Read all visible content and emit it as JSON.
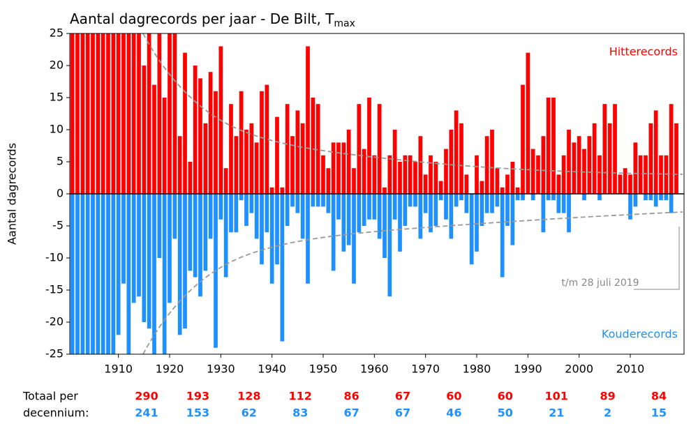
{
  "chart_data": {
    "type": "bar",
    "title": "Aantal dagrecords per jaar - De Bilt, T",
    "title_subscript": "max",
    "ylabel": "Aantal dagrecords",
    "annotation": "t/m 28 juli 2019",
    "x": [
      1901,
      1902,
      1903,
      1904,
      1905,
      1906,
      1907,
      1908,
      1909,
      1910,
      1911,
      1912,
      1913,
      1914,
      1915,
      1916,
      1917,
      1918,
      1919,
      1920,
      1921,
      1922,
      1923,
      1924,
      1925,
      1926,
      1927,
      1928,
      1929,
      1930,
      1931,
      1932,
      1933,
      1934,
      1935,
      1936,
      1937,
      1938,
      1939,
      1940,
      1941,
      1942,
      1943,
      1944,
      1945,
      1946,
      1947,
      1948,
      1949,
      1950,
      1951,
      1952,
      1953,
      1954,
      1955,
      1956,
      1957,
      1958,
      1959,
      1960,
      1961,
      1962,
      1963,
      1964,
      1965,
      1966,
      1967,
      1968,
      1969,
      1970,
      1971,
      1972,
      1973,
      1974,
      1975,
      1976,
      1977,
      1978,
      1979,
      1980,
      1981,
      1982,
      1983,
      1984,
      1985,
      1986,
      1987,
      1988,
      1989,
      1990,
      1991,
      1992,
      1993,
      1994,
      1995,
      1996,
      1997,
      1998,
      1999,
      2000,
      2001,
      2002,
      2003,
      2004,
      2005,
      2006,
      2007,
      2008,
      2009,
      2010,
      2011,
      2012,
      2013,
      2014,
      2015,
      2016,
      2017,
      2018,
      2019
    ],
    "series": [
      {
        "name": "Hitterecords",
        "color": "#ff0000",
        "values": [
          25,
          25,
          25,
          25,
          25,
          25,
          25,
          25,
          25,
          25,
          25,
          25,
          25,
          25,
          20,
          25,
          17,
          25,
          15,
          25,
          25,
          9,
          22,
          5,
          20,
          18,
          11,
          19,
          16,
          23,
          4,
          14,
          9,
          16,
          10,
          11,
          8,
          16,
          17,
          1,
          12,
          1,
          14,
          9,
          13,
          11,
          23,
          15,
          14,
          6,
          4,
          8,
          8,
          8,
          10,
          4,
          14,
          7,
          15,
          6,
          14,
          1,
          6,
          10,
          5,
          6,
          6,
          5,
          9,
          3,
          6,
          5,
          2,
          7,
          10,
          13,
          11,
          3,
          0,
          6,
          2,
          9,
          10,
          4,
          1,
          3,
          5,
          1,
          17,
          22,
          7,
          6,
          9,
          15,
          15,
          3,
          6,
          10,
          8,
          9,
          7,
          9,
          11,
          6,
          14,
          11,
          14,
          3,
          4,
          3,
          8,
          6,
          6,
          11,
          13,
          6,
          6,
          14,
          11
        ]
      },
      {
        "name": "Kouderecords",
        "color": "#1e90ff",
        "values": [
          -25,
          -25,
          -25,
          -25,
          -25,
          -25,
          -25,
          -25,
          -25,
          -22,
          -14,
          -25,
          -17,
          -16,
          -20,
          -21,
          -25,
          -10,
          -25,
          -17,
          -7,
          -22,
          -21,
          -12,
          -13,
          -16,
          -12,
          -7,
          -24,
          -4,
          -13,
          -6,
          -6,
          -1,
          -5,
          -3,
          -7,
          -11,
          -6,
          -14,
          -11,
          -23,
          -5,
          -2,
          -3,
          -7,
          -14,
          -2,
          -2,
          -2,
          -3,
          -12,
          -4,
          -9,
          -8,
          -14,
          -6,
          -5,
          -4,
          -4,
          -7,
          -10,
          -16,
          -4,
          -9,
          -5,
          -2,
          -2,
          -7,
          -3,
          -6,
          -5,
          -1,
          -4,
          -7,
          -2,
          -1,
          -3,
          -11,
          -9,
          -5,
          -3,
          -3,
          -2,
          -13,
          -5,
          -8,
          -1,
          -1,
          0,
          -1,
          0,
          -6,
          -1,
          -1,
          -3,
          -3,
          -6,
          0,
          0,
          -1,
          0,
          0,
          -1,
          0,
          0,
          0,
          0,
          0,
          -4,
          -2,
          0,
          -1,
          -1,
          -2,
          -1,
          -1,
          -3,
          0
        ]
      }
    ],
    "xlim": [
      1900.5,
      2020.5
    ],
    "xticks": [
      1910,
      1920,
      1930,
      1940,
      1950,
      1960,
      1970,
      1980,
      1990,
      2000,
      2010
    ],
    "ylim": [
      -25,
      25
    ],
    "yticks": [
      25,
      20,
      15,
      10,
      5,
      0,
      -5,
      -10,
      -15,
      -20,
      -25
    ],
    "decade_totals": {
      "label": [
        "Totaal per",
        "decennium:"
      ],
      "heat": [
        290,
        193,
        128,
        112,
        86,
        67,
        60,
        60,
        101,
        89,
        84
      ],
      "cold": [
        241,
        153,
        62,
        83,
        67,
        67,
        46,
        50,
        21,
        2,
        15
      ]
    }
  }
}
